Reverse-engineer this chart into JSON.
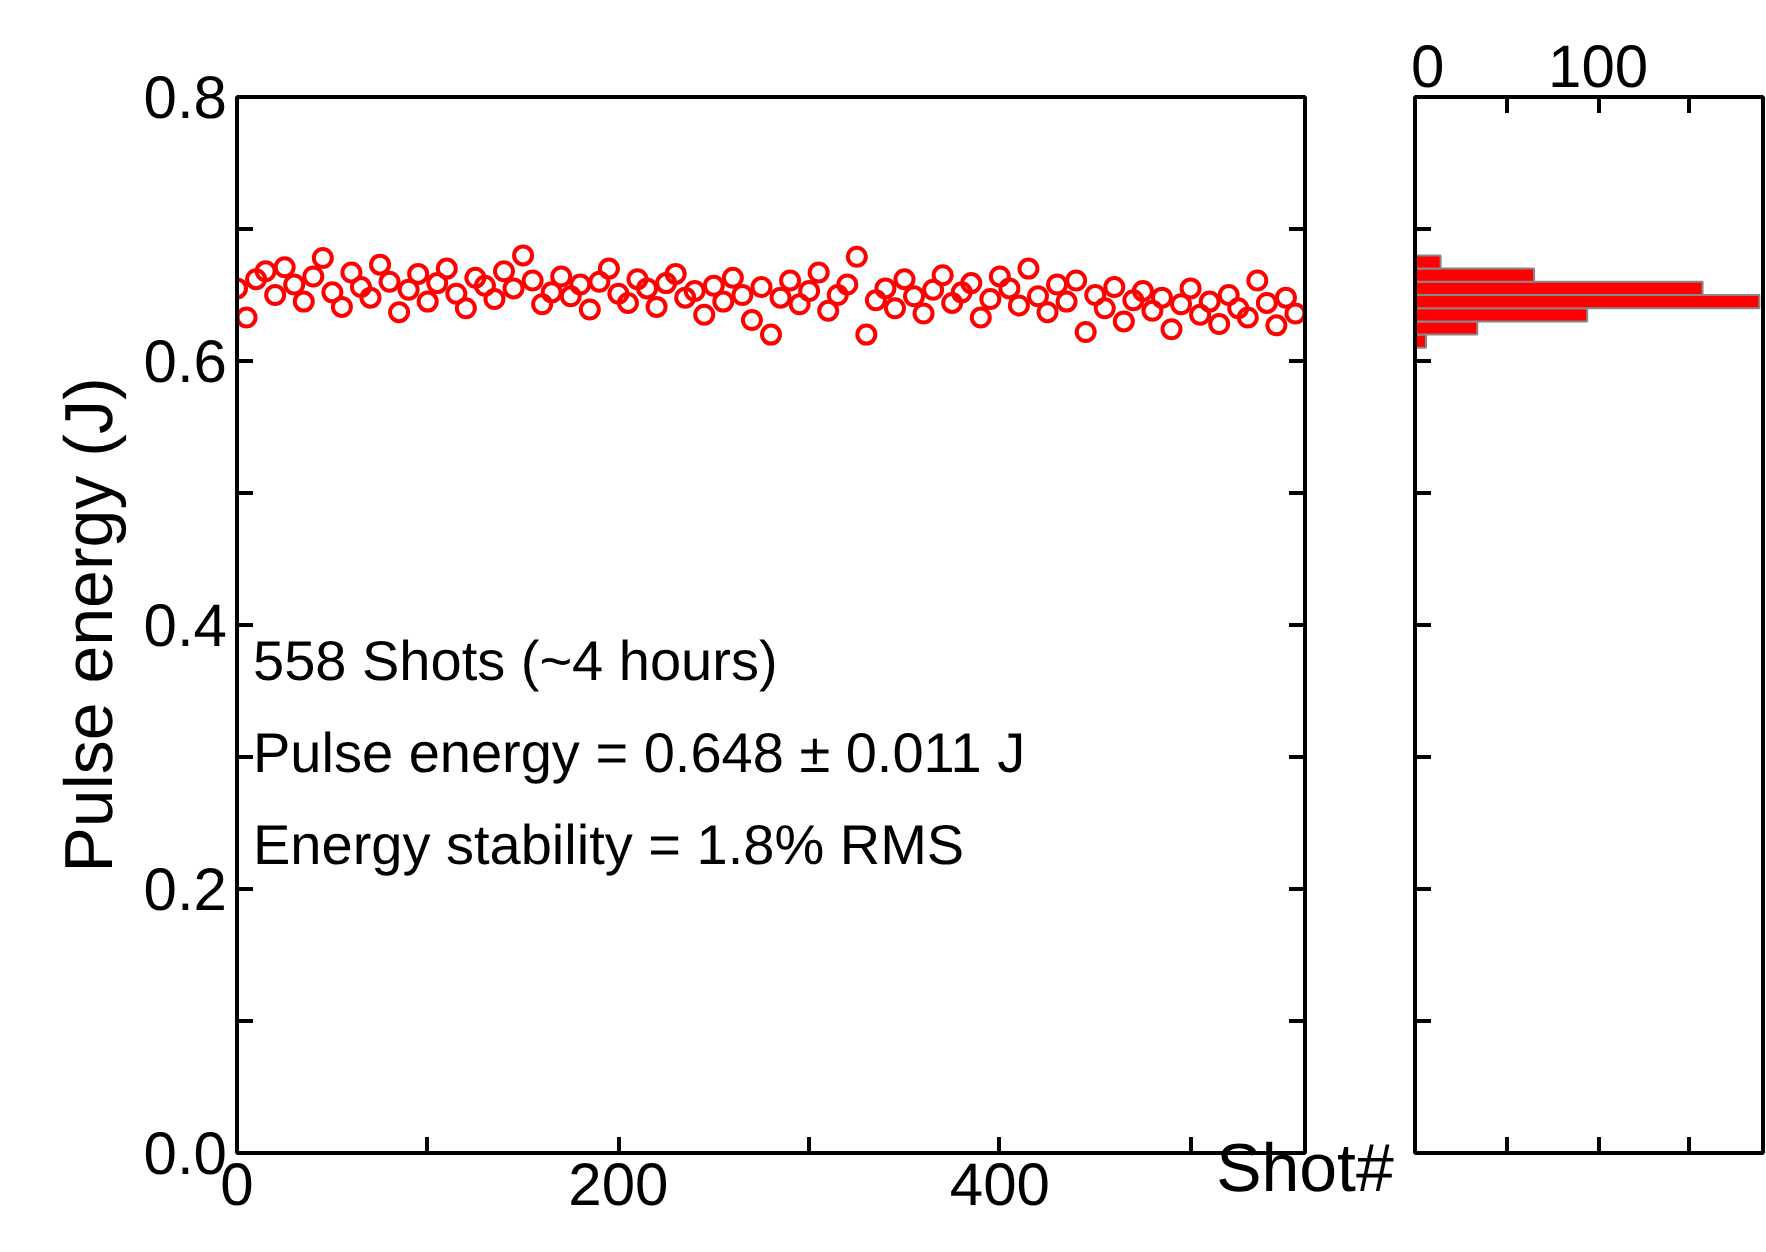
{
  "chart_data": [
    {
      "type": "scatter",
      "xlabel": "Shot#",
      "ylabel": "Pulse energy (J)",
      "color": "#ff0000",
      "marker": "circle",
      "grid": false,
      "annotations": [
        "558 Shots (~4 hours)",
        "Pulse energy = 0.648 ± 0.011 J",
        "Energy stability = 1.8% RMS"
      ],
      "x": [
        0,
        5,
        10,
        15,
        20,
        25,
        30,
        35,
        40,
        45,
        50,
        55,
        60,
        65,
        70,
        75,
        80,
        85,
        90,
        95,
        100,
        105,
        110,
        115,
        120,
        125,
        130,
        135,
        140,
        145,
        150,
        155,
        160,
        165,
        170,
        175,
        180,
        185,
        190,
        195,
        200,
        205,
        210,
        215,
        220,
        225,
        230,
        235,
        240,
        245,
        250,
        255,
        260,
        265,
        270,
        275,
        280,
        285,
        290,
        295,
        300,
        305,
        310,
        315,
        320,
        325,
        330,
        335,
        340,
        345,
        350,
        355,
        360,
        365,
        370,
        375,
        380,
        385,
        390,
        395,
        400,
        405,
        410,
        415,
        420,
        425,
        430,
        435,
        440,
        445,
        450,
        455,
        460,
        465,
        470,
        475,
        480,
        485,
        490,
        495,
        500,
        505,
        510,
        515,
        520,
        525,
        530,
        535,
        540,
        545,
        550,
        555
      ],
      "values": [
        0.655,
        0.633,
        0.662,
        0.668,
        0.65,
        0.671,
        0.658,
        0.645,
        0.664,
        0.678,
        0.652,
        0.641,
        0.667,
        0.656,
        0.648,
        0.673,
        0.66,
        0.637,
        0.654,
        0.666,
        0.645,
        0.659,
        0.67,
        0.651,
        0.64,
        0.663,
        0.657,
        0.647,
        0.668,
        0.655,
        0.68,
        0.661,
        0.643,
        0.652,
        0.664,
        0.649,
        0.658,
        0.639,
        0.66,
        0.67,
        0.651,
        0.644,
        0.662,
        0.655,
        0.641,
        0.659,
        0.666,
        0.648,
        0.653,
        0.635,
        0.657,
        0.645,
        0.663,
        0.65,
        0.631,
        0.656,
        0.62,
        0.648,
        0.661,
        0.643,
        0.653,
        0.667,
        0.638,
        0.65,
        0.658,
        0.679,
        0.62,
        0.646,
        0.655,
        0.64,
        0.662,
        0.649,
        0.636,
        0.654,
        0.665,
        0.644,
        0.652,
        0.659,
        0.633,
        0.647,
        0.664,
        0.655,
        0.642,
        0.67,
        0.649,
        0.637,
        0.658,
        0.645,
        0.661,
        0.622,
        0.65,
        0.64,
        0.656,
        0.63,
        0.646,
        0.653,
        0.638,
        0.648,
        0.624,
        0.643,
        0.655,
        0.635,
        0.645,
        0.628,
        0.65,
        0.64,
        0.633,
        0.661,
        0.644,
        0.627,
        0.648,
        0.636
      ],
      "xlim": [
        0,
        560
      ],
      "xticks": [
        0,
        {
          "value": 100,
          "label": null
        },
        200,
        {
          "value": 300,
          "label": null
        },
        400,
        {
          "value": 500,
          "label": null
        }
      ],
      "ylim": [
        0,
        0.8
      ],
      "yticks": [
        {
          "value": 0,
          "label": "0.0"
        },
        {
          "value": 0.1,
          "label": null
        },
        0.2,
        {
          "value": 0.3,
          "label": null
        },
        0.4,
        {
          "value": 0.5,
          "label": null
        },
        0.6,
        {
          "value": 0.7,
          "label": null
        },
        0.8
      ]
    },
    {
      "type": "histogram",
      "orientation": "horizontal",
      "color": "#ff0000",
      "grid": false,
      "tick_labels": "x",
      "bins": [
        0.61,
        0.62,
        0.63,
        0.64,
        0.65,
        0.66,
        0.67,
        0.68
      ],
      "values": [
        6,
        34,
        94,
        188,
        157,
        65,
        14
      ],
      "xlim": [
        0,
        190
      ],
      "xticks": [
        0,
        {
          "value": 50,
          "label": null
        },
        100,
        {
          "value": 150,
          "label": null
        }
      ],
      "ylim": [
        0,
        0.8
      ],
      "yticks": [
        {
          "value": 0,
          "label": null
        },
        {
          "value": 0.1,
          "label": null
        },
        {
          "value": 0.2,
          "label": null
        },
        {
          "value": 0.3,
          "label": null
        },
        {
          "value": 0.4,
          "label": null
        },
        {
          "value": 0.5,
          "label": null
        },
        {
          "value": 0.6,
          "label": null
        },
        {
          "value": 0.7,
          "label": null
        },
        {
          "value": 0.8,
          "label": null
        }
      ]
    }
  ]
}
